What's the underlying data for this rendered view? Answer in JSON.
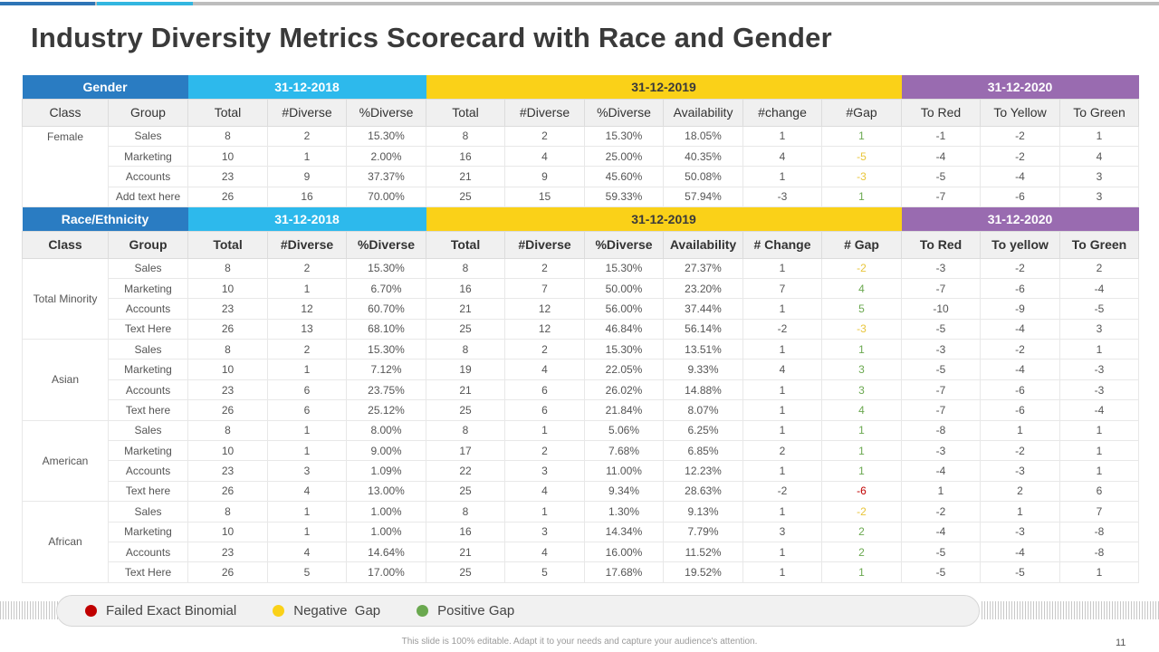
{
  "title": "Industry Diversity Metrics Scorecard with Race and Gender",
  "colors": {
    "band_category": "#2a7cc2",
    "band_2018": "#2db9ec",
    "band_2019": "#fad118",
    "band_2020": "#996bb0",
    "gap_green": "#6aa84f",
    "gap_yellow": "#e8c53a",
    "gap_red": "#c00000"
  },
  "gender_table": {
    "bands": [
      "Gender",
      "31-12-2018",
      "31-12-2019",
      "31-12-2020"
    ],
    "columns": [
      "Class",
      "Group",
      "Total",
      "#Diverse",
      "%Diverse",
      "Total",
      "#Diverse",
      "%Diverse",
      "Availability",
      "#change",
      "#Gap",
      "To Red",
      "To Yellow",
      "To Green"
    ],
    "groups": [
      {
        "class": "Female",
        "rows": [
          {
            "group": "Sales",
            "t18": "8",
            "d18": "2",
            "p18": "15.30%",
            "t19": "8",
            "d19": "2",
            "p19": "15.30%",
            "avail": "18.05%",
            "change": "1",
            "gap": "1",
            "gap_status": "green",
            "to_red": "-1",
            "to_yellow": "-2",
            "to_green": "1"
          },
          {
            "group": "Marketing",
            "t18": "10",
            "d18": "1",
            "p18": "2.00%",
            "t19": "16",
            "d19": "4",
            "p19": "25.00%",
            "avail": "40.35%",
            "change": "4",
            "gap": "-5",
            "gap_status": "yellow",
            "to_red": "-4",
            "to_yellow": "-2",
            "to_green": "4"
          },
          {
            "group": "Accounts",
            "t18": "23",
            "d18": "9",
            "p18": "37.37%",
            "t19": "21",
            "d19": "9",
            "p19": "45.60%",
            "avail": "50.08%",
            "change": "1",
            "gap": "-3",
            "gap_status": "yellow",
            "to_red": "-5",
            "to_yellow": "-4",
            "to_green": "3"
          },
          {
            "group": "Add text here",
            "t18": "26",
            "d18": "16",
            "p18": "70.00%",
            "t19": "25",
            "d19": "15",
            "p19": "59.33%",
            "avail": "57.94%",
            "change": "-3",
            "gap": "1",
            "gap_status": "green",
            "to_red": "-7",
            "to_yellow": "-6",
            "to_green": "3"
          }
        ]
      }
    ]
  },
  "race_table": {
    "bands": [
      "Race/Ethnicity",
      "31-12-2018",
      "31-12-2019",
      "31-12-2020"
    ],
    "columns": [
      "Class",
      "Group",
      "Total",
      "#Diverse",
      "%Diverse",
      "Total",
      "#Diverse",
      "%Diverse",
      "Availability",
      "# Change",
      "# Gap",
      "To Red",
      "To yellow",
      "To Green"
    ],
    "groups": [
      {
        "class": "Total Minority",
        "rows": [
          {
            "group": "Sales",
            "t18": "8",
            "d18": "2",
            "p18": "15.30%",
            "t19": "8",
            "d19": "2",
            "p19": "15.30%",
            "avail": "27.37%",
            "change": "1",
            "gap": "-2",
            "gap_status": "yellow",
            "to_red": "-3",
            "to_yellow": "-2",
            "to_green": "2"
          },
          {
            "group": "Marketing",
            "t18": "10",
            "d18": "1",
            "p18": "6.70%",
            "t19": "16",
            "d19": "7",
            "p19": "50.00%",
            "avail": "23.20%",
            "change": "7",
            "gap": "4",
            "gap_status": "green",
            "to_red": "-7",
            "to_yellow": "-6",
            "to_green": "-4"
          },
          {
            "group": "Accounts",
            "t18": "23",
            "d18": "12",
            "p18": "60.70%",
            "t19": "21",
            "d19": "12",
            "p19": "56.00%",
            "avail": "37.44%",
            "change": "1",
            "gap": "5",
            "gap_status": "green",
            "to_red": "-10",
            "to_yellow": "-9",
            "to_green": "-5"
          },
          {
            "group": "Text Here",
            "t18": "26",
            "d18": "13",
            "p18": "68.10%",
            "t19": "25",
            "d19": "12",
            "p19": "46.84%",
            "avail": "56.14%",
            "change": "-2",
            "gap": "-3",
            "gap_status": "yellow",
            "to_red": "-5",
            "to_yellow": "-4",
            "to_green": "3"
          }
        ]
      },
      {
        "class": "Asian",
        "rows": [
          {
            "group": "Sales",
            "t18": "8",
            "d18": "2",
            "p18": "15.30%",
            "t19": "8",
            "d19": "2",
            "p19": "15.30%",
            "avail": "13.51%",
            "change": "1",
            "gap": "1",
            "gap_status": "green",
            "to_red": "-3",
            "to_yellow": "-2",
            "to_green": "1"
          },
          {
            "group": "Marketing",
            "t18": "10",
            "d18": "1",
            "p18": "7.12%",
            "t19": "19",
            "d19": "4",
            "p19": "22.05%",
            "avail": "9.33%",
            "change": "4",
            "gap": "3",
            "gap_status": "green",
            "to_red": "-5",
            "to_yellow": "-4",
            "to_green": "-3"
          },
          {
            "group": "Accounts",
            "t18": "23",
            "d18": "6",
            "p18": "23.75%",
            "t19": "21",
            "d19": "6",
            "p19": "26.02%",
            "avail": "14.88%",
            "change": "1",
            "gap": "3",
            "gap_status": "green",
            "to_red": "-7",
            "to_yellow": "-6",
            "to_green": "-3"
          },
          {
            "group": "Text here",
            "t18": "26",
            "d18": "6",
            "p18": "25.12%",
            "t19": "25",
            "d19": "6",
            "p19": "21.84%",
            "avail": "8.07%",
            "change": "1",
            "gap": "4",
            "gap_status": "green",
            "to_red": "-7",
            "to_yellow": "-6",
            "to_green": "-4"
          }
        ]
      },
      {
        "class": "American",
        "rows": [
          {
            "group": "Sales",
            "t18": "8",
            "d18": "1",
            "p18": "8.00%",
            "t19": "8",
            "d19": "1",
            "p19": "5.06%",
            "avail": "6.25%",
            "change": "1",
            "gap": "1",
            "gap_status": "green",
            "to_red": "-8",
            "to_yellow": "1",
            "to_green": "1"
          },
          {
            "group": "Marketing",
            "t18": "10",
            "d18": "1",
            "p18": "9.00%",
            "t19": "17",
            "d19": "2",
            "p19": "7.68%",
            "avail": "6.85%",
            "change": "2",
            "gap": "1",
            "gap_status": "green",
            "to_red": "-3",
            "to_yellow": "-2",
            "to_green": "1"
          },
          {
            "group": "Accounts",
            "t18": "23",
            "d18": "3",
            "p18": "1.09%",
            "t19": "22",
            "d19": "3",
            "p19": "11.00%",
            "avail": "12.23%",
            "change": "1",
            "gap": "1",
            "gap_status": "green",
            "to_red": "-4",
            "to_yellow": "-3",
            "to_green": "1"
          },
          {
            "group": "Text here",
            "t18": "26",
            "d18": "4",
            "p18": "13.00%",
            "t19": "25",
            "d19": "4",
            "p19": "9.34%",
            "avail": "28.63%",
            "change": "-2",
            "gap": "-6",
            "gap_status": "red",
            "to_red": "1",
            "to_yellow": "2",
            "to_green": "6"
          }
        ]
      },
      {
        "class": "African",
        "rows": [
          {
            "group": "Sales",
            "t18": "8",
            "d18": "1",
            "p18": "1.00%",
            "t19": "8",
            "d19": "1",
            "p19": "1.30%",
            "avail": "9.13%",
            "change": "1",
            "gap": "-2",
            "gap_status": "yellow",
            "to_red": "-2",
            "to_yellow": "1",
            "to_green": "7"
          },
          {
            "group": "Marketing",
            "t18": "10",
            "d18": "1",
            "p18": "1.00%",
            "t19": "16",
            "d19": "3",
            "p19": "14.34%",
            "avail": "7.79%",
            "change": "3",
            "gap": "2",
            "gap_status": "green",
            "to_red": "-4",
            "to_yellow": "-3",
            "to_green": "-8"
          },
          {
            "group": "Accounts",
            "t18": "23",
            "d18": "4",
            "p18": "14.64%",
            "t19": "21",
            "d19": "4",
            "p19": "16.00%",
            "avail": "11.52%",
            "change": "1",
            "gap": "2",
            "gap_status": "green",
            "to_red": "-5",
            "to_yellow": "-4",
            "to_green": "-8"
          },
          {
            "group": "Text Here",
            "t18": "26",
            "d18": "5",
            "p18": "17.00%",
            "t19": "25",
            "d19": "5",
            "p19": "17.68%",
            "avail": "19.52%",
            "change": "1",
            "gap": "1",
            "gap_status": "green",
            "to_red": "-5",
            "to_yellow": "-5",
            "to_green": "1"
          }
        ]
      }
    ]
  },
  "legend": [
    {
      "label": "Failed Exact Binomial",
      "color": "#c00000"
    },
    {
      "label": "Negative  Gap",
      "color": "#fad118"
    },
    {
      "label": "Positive Gap",
      "color": "#6aa84f"
    }
  ],
  "footer_note": "This slide is 100% editable. Adapt it to your needs and capture your audience's attention.",
  "page_number": "11"
}
